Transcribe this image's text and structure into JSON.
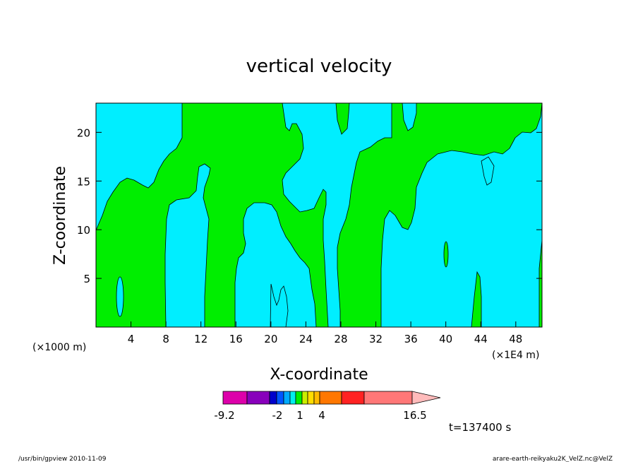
{
  "chart_data": {
    "type": "heatmap",
    "title": "vertical velocity",
    "xlabel": "X-coordinate",
    "ylabel": "Z-coordinate",
    "x_unit_left": "(×1000 m)",
    "x_unit_right": "(×1E4 m)",
    "xlim": [
      0,
      51
    ],
    "ylim": [
      0,
      23
    ],
    "x_ticks": [
      "4",
      "8",
      "12",
      "16",
      "20",
      "24",
      "28",
      "32",
      "36",
      "40",
      "44",
      "48"
    ],
    "y_ticks": [
      "5",
      "10",
      "15",
      "20"
    ],
    "fill_colors": {
      "background": "#00eeff",
      "region": "#00ee00"
    },
    "colorbar": {
      "colors": [
        "#dd00aa",
        "#8800bb",
        "#0000cc",
        "#0055ff",
        "#00aaff",
        "#00eeee",
        "#00ee00",
        "#ccee00",
        "#ffdd00",
        "#ffbb00",
        "#ff7700",
        "#ff2222",
        "#ff7777",
        "#ffbbbb"
      ],
      "labels": [
        "-9.2",
        "-2",
        "1",
        "4",
        "16.5"
      ]
    },
    "time_label": "t=137400 s"
  },
  "footer": {
    "left": "/usr/bin/gpview   2010-11-09",
    "right": "arare-earth-reikyaku2K_VelZ.nc@VelZ"
  }
}
